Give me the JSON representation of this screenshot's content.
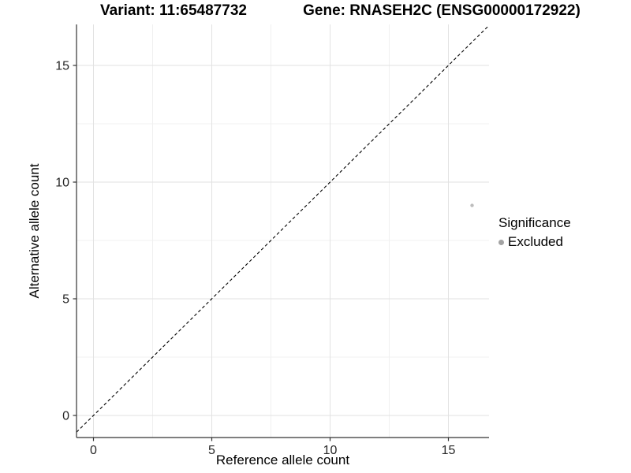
{
  "chart_data": {
    "type": "scatter",
    "title_variant": "Variant: 11:65487732",
    "title_gene": "Gene: RNASEH2C (ENSG00000172922)",
    "xlabel": "Reference allele count",
    "ylabel": "Alternative allele count",
    "xlim": [
      -0.72,
      16.72
    ],
    "ylim": [
      -0.95,
      16.76
    ],
    "x_major_ticks": [
      0,
      5,
      10,
      15
    ],
    "y_major_ticks": [
      0,
      5,
      10,
      15
    ],
    "x_minor_ticks": [
      2.5,
      7.5,
      12.5
    ],
    "y_minor_ticks": [
      2.5,
      7.5,
      12.5
    ],
    "grid": "major+minor",
    "reference_line": {
      "kind": "identity",
      "slope": 1,
      "intercept": 0,
      "style": "dashed",
      "color": "#000000"
    },
    "series": [
      {
        "name": "Excluded",
        "color": "#bdbdbd",
        "points": [
          {
            "x": 16,
            "y": 9
          }
        ]
      }
    ],
    "legend": {
      "title": "Significance",
      "position": "right",
      "items": [
        {
          "label": "Excluded",
          "color": "#a3a3a3",
          "marker": "circle"
        }
      ]
    }
  },
  "palette": {
    "grid_major": "#e2e2e2",
    "grid_minor": "#f0f0f0",
    "axis_line": "#333333",
    "tick_mark": "#333333",
    "tick_label": "#262626",
    "background": "#ffffff"
  }
}
